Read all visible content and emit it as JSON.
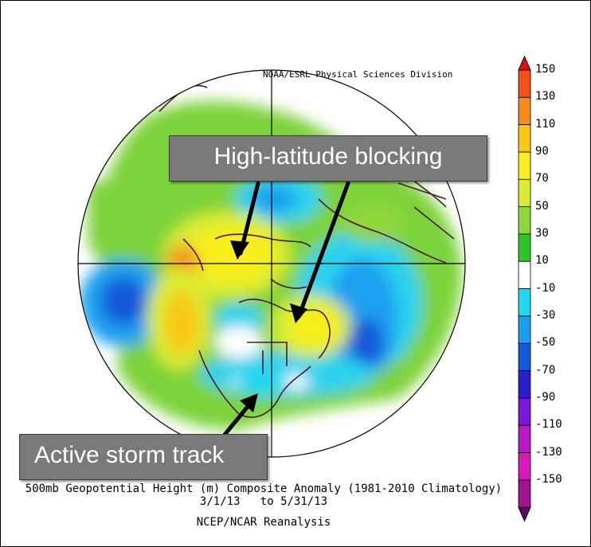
{
  "credit": "NOAA/ESRL Physical Sciences Division",
  "callouts": {
    "blocking": "High-latitude blocking",
    "storm": "Active storm track"
  },
  "caption": {
    "line1": "500mb Geopotential Height (m) Composite Anomaly (1981-2010 Climatology)",
    "line2": "3/1/13   to 5/31/13",
    "line3": "NCEP/NCAR Reanalysis"
  },
  "colorbar": {
    "labels": [
      "150",
      "130",
      "110",
      "90",
      "70",
      "50",
      "30",
      "10",
      "-10",
      "-30",
      "-50",
      "-70",
      "-90",
      "-110",
      "-130",
      "-150"
    ],
    "colors": [
      "#e01010",
      "#f0501a",
      "#f68c1c",
      "#f9c814",
      "#f8ee1e",
      "#d9ec32",
      "#8fd63a",
      "#2fc427",
      "#ffffff",
      "#22d8ee",
      "#1aa0f0",
      "#1458d8",
      "#2820c8",
      "#7a18d8",
      "#b818c8",
      "#d818b8",
      "#a01490",
      "#5a0a5a"
    ]
  }
}
